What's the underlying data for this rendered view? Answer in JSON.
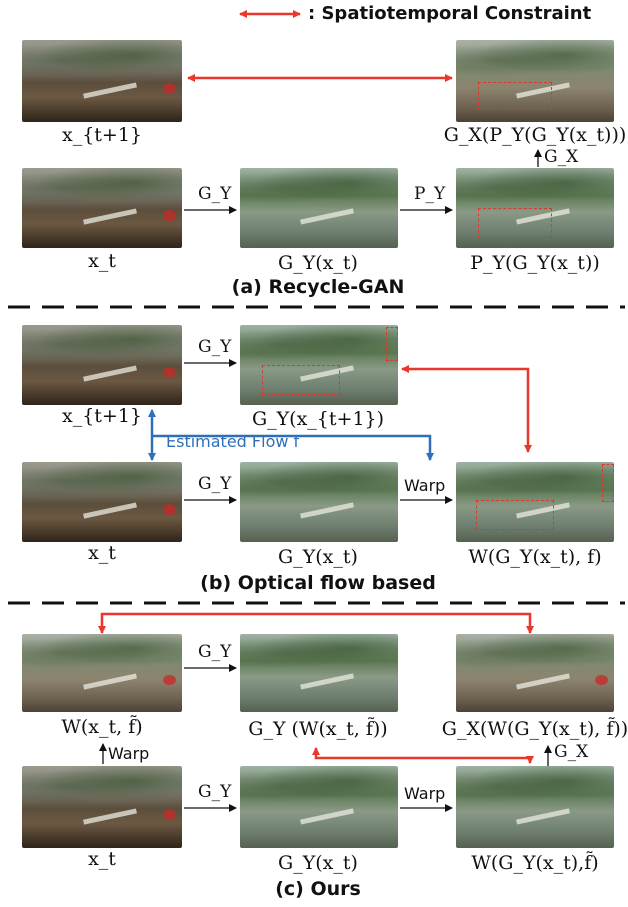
{
  "legend": {
    "text": ": Spatiotemporal Constraint"
  },
  "section_a": {
    "caption": "(a) Recycle-GAN",
    "labels": {
      "x_t1": "x_{t+1}",
      "gx_py_gy": "G_X(P_Y(G_Y(x_t)))",
      "x_t": "x_t",
      "gy_xt": "G_Y(x_t)",
      "py_gy": "P_Y(G_Y(x_t))"
    },
    "arrows": {
      "gy": "G_Y",
      "py": "P_Y",
      "gx": "G_X"
    }
  },
  "section_b": {
    "caption": "(b) Optical flow based",
    "labels": {
      "x_t1": "x_{t+1}",
      "gy_xt1": "G_Y(x_{t+1})",
      "x_t": "x_t",
      "gy_xt": "G_Y(x_t)",
      "w_gy": "W(G_Y(x_t), f)"
    },
    "arrows": {
      "gy_top": "G_Y",
      "gy_bottom": "G_Y",
      "warp": "Warp"
    },
    "flow_label": "Estimated Flow f"
  },
  "section_c": {
    "caption": "(c) Ours",
    "labels": {
      "w_xt": "W(x_t, f̃)",
      "gy_w": "G_Y (W(x_t, f̃))",
      "gx_w": "G_X(W(G_Y(x_t), f̃))",
      "x_t": "x_t",
      "gy_xt": "G_Y(x_t)",
      "w_gy": "W(G_Y(x_t),f̃)"
    },
    "arrows": {
      "gy_top": "G_Y",
      "gy_bottom": "G_Y",
      "warp_up": "Warp",
      "warp_right": "Warp",
      "gx": "G_X"
    }
  },
  "colors": {
    "constraint": "#e8372b",
    "flow": "#2e6fb8",
    "box": "#d93a2b"
  }
}
